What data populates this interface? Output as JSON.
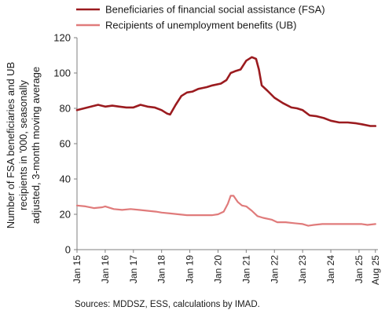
{
  "colors": {
    "fsa": "#9b1b1f",
    "ub": "#e07b7b",
    "axis": "#7f7f7f"
  },
  "chart_data": {
    "type": "line",
    "ylabel_lines": [
      "Number of FSA beneficiaries and UB",
      "recipients in '000, seasonally",
      "adjusted, 3-month moving average"
    ],
    "ylim": [
      0,
      120
    ],
    "yticks": [
      0,
      20,
      40,
      60,
      80,
      100,
      120
    ],
    "xlim": [
      2015,
      2025.67
    ],
    "xticks": [
      {
        "x": 2015,
        "label": "Jan 15"
      },
      {
        "x": 2016,
        "label": "Jan 16"
      },
      {
        "x": 2017,
        "label": "Jan 17"
      },
      {
        "x": 2018,
        "label": "Jan 18"
      },
      {
        "x": 2019,
        "label": "Jan 19"
      },
      {
        "x": 2020,
        "label": "Jan 20"
      },
      {
        "x": 2021,
        "label": "Jan 21"
      },
      {
        "x": 2022,
        "label": "Jan 22"
      },
      {
        "x": 2023,
        "label": "Jan 23"
      },
      {
        "x": 2024,
        "label": "Jan 24"
      },
      {
        "x": 2025,
        "label": "Jan 25"
      },
      {
        "x": 2025.58,
        "label": "Aug 25"
      }
    ],
    "grid": false,
    "legend_position": "top-left",
    "series": [
      {
        "name": "Beneficiaries of financial social assistance (FSA)",
        "points": [
          [
            2015.0,
            79
          ],
          [
            2015.25,
            80
          ],
          [
            2015.5,
            81
          ],
          [
            2015.75,
            82
          ],
          [
            2016.0,
            81
          ],
          [
            2016.25,
            81.5
          ],
          [
            2016.5,
            81
          ],
          [
            2016.75,
            80.5
          ],
          [
            2017.0,
            80.5
          ],
          [
            2017.25,
            82
          ],
          [
            2017.5,
            81
          ],
          [
            2017.75,
            80.5
          ],
          [
            2018.0,
            79
          ],
          [
            2018.2,
            77
          ],
          [
            2018.3,
            76.5
          ],
          [
            2018.5,
            82
          ],
          [
            2018.7,
            87
          ],
          [
            2018.9,
            89
          ],
          [
            2019.1,
            89.5
          ],
          [
            2019.3,
            91
          ],
          [
            2019.6,
            92
          ],
          [
            2019.8,
            93
          ],
          [
            2020.1,
            94
          ],
          [
            2020.3,
            96
          ],
          [
            2020.45,
            100
          ],
          [
            2020.6,
            101
          ],
          [
            2020.8,
            102
          ],
          [
            2021.0,
            107
          ],
          [
            2021.2,
            109
          ],
          [
            2021.35,
            108
          ],
          [
            2021.45,
            102
          ],
          [
            2021.55,
            93
          ],
          [
            2021.75,
            90
          ],
          [
            2022.0,
            86
          ],
          [
            2022.3,
            83
          ],
          [
            2022.6,
            80.5
          ],
          [
            2022.8,
            80
          ],
          [
            2023.0,
            79
          ],
          [
            2023.25,
            76
          ],
          [
            2023.5,
            75.5
          ],
          [
            2023.75,
            74.5
          ],
          [
            2024.0,
            73
          ],
          [
            2024.3,
            72
          ],
          [
            2024.6,
            72
          ],
          [
            2024.9,
            71.5
          ],
          [
            2025.1,
            71
          ],
          [
            2025.4,
            70
          ],
          [
            2025.58,
            70
          ]
        ]
      },
      {
        "name": "Recipients of unemployment benefits (UB)",
        "points": [
          [
            2015.0,
            25
          ],
          [
            2015.3,
            24.5
          ],
          [
            2015.6,
            23.5
          ],
          [
            2015.9,
            24
          ],
          [
            2016.0,
            24.5
          ],
          [
            2016.3,
            23
          ],
          [
            2016.6,
            22.5
          ],
          [
            2016.9,
            23
          ],
          [
            2017.2,
            22.5
          ],
          [
            2017.5,
            22
          ],
          [
            2017.8,
            21.5
          ],
          [
            2018.0,
            21
          ],
          [
            2018.3,
            20.5
          ],
          [
            2018.6,
            20
          ],
          [
            2018.9,
            19.5
          ],
          [
            2019.2,
            19.5
          ],
          [
            2019.5,
            19.5
          ],
          [
            2019.8,
            19.5
          ],
          [
            2020.0,
            20
          ],
          [
            2020.2,
            21.5
          ],
          [
            2020.35,
            26
          ],
          [
            2020.45,
            30.5
          ],
          [
            2020.55,
            30.5
          ],
          [
            2020.7,
            27
          ],
          [
            2020.85,
            25
          ],
          [
            2021.0,
            24.5
          ],
          [
            2021.2,
            22
          ],
          [
            2021.4,
            19
          ],
          [
            2021.6,
            18
          ],
          [
            2021.9,
            17
          ],
          [
            2022.1,
            15.5
          ],
          [
            2022.4,
            15.5
          ],
          [
            2022.7,
            15
          ],
          [
            2023.0,
            14.5
          ],
          [
            2023.2,
            13.5
          ],
          [
            2023.4,
            14
          ],
          [
            2023.7,
            14.5
          ],
          [
            2024.0,
            14.5
          ],
          [
            2024.3,
            14.5
          ],
          [
            2024.6,
            14.5
          ],
          [
            2024.9,
            14.5
          ],
          [
            2025.1,
            14.5
          ],
          [
            2025.3,
            14
          ],
          [
            2025.58,
            14.5
          ]
        ]
      }
    ],
    "source": "Sources: MDDSZ, ESS, calculations by IMAD."
  }
}
